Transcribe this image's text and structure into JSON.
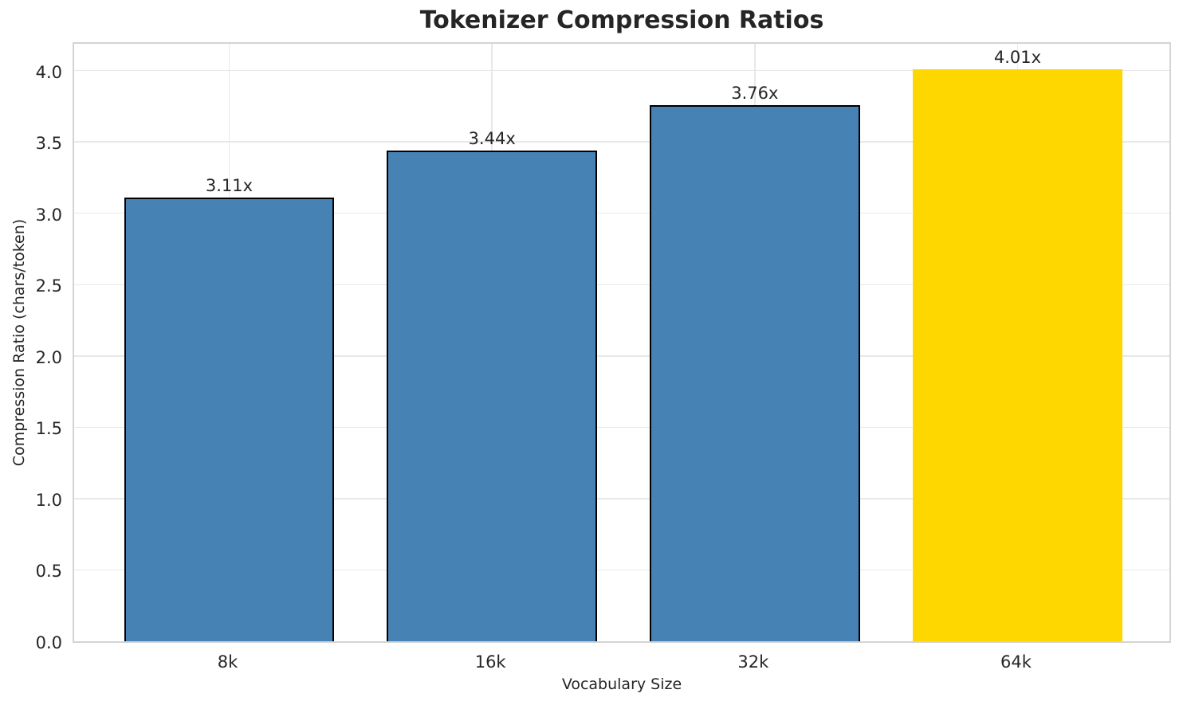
{
  "chart_data": {
    "type": "bar",
    "title": "Tokenizer Compression Ratios",
    "xlabel": "Vocabulary Size",
    "ylabel": "Compression Ratio (chars/token)",
    "categories": [
      "8k",
      "16k",
      "32k",
      "64k"
    ],
    "values": [
      3.11,
      3.44,
      3.76,
      4.01
    ],
    "bar_labels": [
      "3.11x",
      "3.44x",
      "3.76x",
      "4.01x"
    ],
    "bar_colors": [
      "#4682B4",
      "#4682B4",
      "#4682B4",
      "#FFD700"
    ],
    "bar_edge_colors": [
      "#000000",
      "#000000",
      "#000000",
      "none"
    ],
    "highlight_color": "#FFD700",
    "base_color": "#4682B4",
    "ylim": [
      0,
      4.21
    ],
    "yticks": [
      0.0,
      0.5,
      1.0,
      1.5,
      2.0,
      2.5,
      3.0,
      3.5,
      4.0
    ],
    "ytick_labels": [
      "0.0",
      "0.5",
      "1.0",
      "1.5",
      "2.0",
      "2.5",
      "3.0",
      "3.5",
      "4.0"
    ],
    "grid": true,
    "grid_color": "#e8e8e8",
    "legend": "none"
  }
}
